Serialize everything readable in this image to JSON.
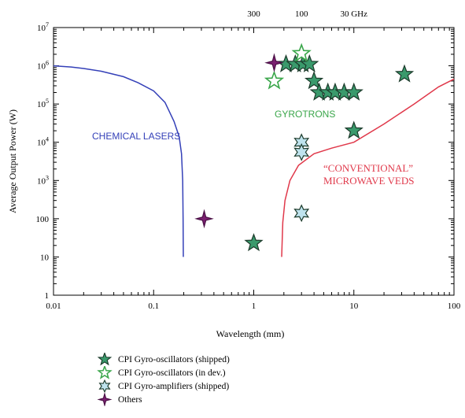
{
  "chart_data": {
    "type": "scatter",
    "x_scale": "log",
    "y_scale": "log",
    "xlim": [
      0.01,
      100
    ],
    "ylim": [
      1,
      10000000
    ],
    "xlabel": "Wavelength (mm)",
    "ylabel": "Average Output Power (W)",
    "x_ticks": [
      "0.01",
      "0.1",
      "1",
      "10",
      "100"
    ],
    "y_ticks": [
      "1",
      "10",
      "100",
      "10^3",
      "10^4",
      "10^5",
      "10^6",
      "10^7"
    ],
    "top_axis_ticks": [
      {
        "label": "300",
        "x": 1.0
      },
      {
        "label": "100",
        "x": 3.0
      },
      {
        "label": "30 GHz",
        "x": 10.0
      }
    ],
    "annotations": [
      {
        "text": "CHEMICAL LASERS",
        "color": "#3440b8"
      },
      {
        "text": "GYROTRONS",
        "color": "#3aa64a"
      },
      {
        "text": "“CONVENTIONAL”",
        "color": "#e0384a"
      },
      {
        "text": "MICROWAVE VEDS",
        "color": "#e0384a"
      }
    ],
    "lines": [
      {
        "name": "CHEMICAL LASERS",
        "color": "#3440b8",
        "points": [
          [
            0.01,
            1000000
          ],
          [
            0.015,
            930000
          ],
          [
            0.02,
            850000
          ],
          [
            0.03,
            720000
          ],
          [
            0.05,
            520000
          ],
          [
            0.07,
            360000
          ],
          [
            0.1,
            220000
          ],
          [
            0.13,
            110000
          ],
          [
            0.16,
            35000
          ],
          [
            0.18,
            14000
          ],
          [
            0.19,
            5000
          ],
          [
            0.195,
            1000
          ],
          [
            0.197,
            100
          ],
          [
            0.198,
            10
          ]
        ]
      },
      {
        "name": "CONVENTIONAL MICROWAVE VEDS",
        "color": "#e0384a",
        "points": [
          [
            1.9,
            10
          ],
          [
            1.95,
            80
          ],
          [
            2.05,
            300
          ],
          [
            2.3,
            1000
          ],
          [
            2.8,
            2500
          ],
          [
            4,
            5000
          ],
          [
            6,
            7000
          ],
          [
            10,
            10000
          ],
          [
            20,
            30000
          ],
          [
            40,
            100000
          ],
          [
            70,
            280000
          ],
          [
            100,
            450000
          ]
        ]
      }
    ],
    "series": [
      {
        "name": "CPI Gyro-oscillators (shipped)",
        "marker": "star5",
        "fill": "#3a9a6c",
        "stroke": "#1b3a2a",
        "points": [
          [
            1.0,
            23
          ],
          [
            2.1,
            1100000
          ],
          [
            2.6,
            1100000
          ],
          [
            3.1,
            1100000
          ],
          [
            3.6,
            1100000
          ],
          [
            4.0,
            400000
          ],
          [
            4.5,
            200000
          ],
          [
            5.5,
            200000
          ],
          [
            6.5,
            200000
          ],
          [
            8.0,
            200000
          ],
          [
            10.0,
            200000
          ],
          [
            10.0,
            20000
          ],
          [
            32.0,
            600000
          ]
        ]
      },
      {
        "name": "CPI Gyro-oscillators (in dev.)",
        "marker": "star5",
        "fill": "#ffffff",
        "stroke": "#3aa64a",
        "points": [
          [
            1.6,
            400000
          ],
          [
            3.0,
            2100000
          ]
        ]
      },
      {
        "name": "CPI Gyro-amplifiers (shipped)",
        "marker": "star6",
        "fill": "#bfe3ee",
        "stroke": "#1b3a2a",
        "points": [
          [
            3.0,
            10000
          ],
          [
            3.0,
            5500
          ],
          [
            3.0,
            140
          ]
        ]
      },
      {
        "name": "Others",
        "marker": "star4",
        "fill": "#7a1f70",
        "stroke": "#4a0f45",
        "points": [
          [
            0.32,
            100
          ],
          [
            1.6,
            1200000
          ]
        ]
      }
    ]
  }
}
